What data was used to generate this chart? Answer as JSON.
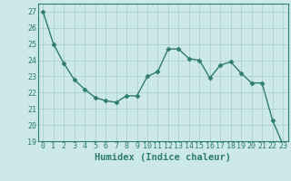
{
  "x": [
    0,
    1,
    2,
    3,
    4,
    5,
    6,
    7,
    8,
    9,
    10,
    11,
    12,
    13,
    14,
    15,
    16,
    17,
    18,
    19,
    20,
    21,
    22,
    23
  ],
  "y": [
    27.0,
    25.0,
    23.8,
    22.8,
    22.2,
    21.7,
    21.5,
    21.4,
    21.8,
    21.8,
    23.0,
    23.3,
    24.7,
    24.7,
    24.1,
    24.0,
    22.9,
    23.7,
    23.9,
    23.2,
    22.6,
    22.6,
    20.3,
    18.8
  ],
  "line_color": "#2e7d6e",
  "marker": "D",
  "marker_size": 2.5,
  "bg_color": "#cce8e8",
  "grid_color": "#aacccc",
  "xlabel": "Humidex (Indice chaleur)",
  "ylim": [
    19,
    27.5
  ],
  "xlim": [
    -0.5,
    23.5
  ],
  "yticks": [
    19,
    20,
    21,
    22,
    23,
    24,
    25,
    26,
    27
  ],
  "xticks": [
    0,
    1,
    2,
    3,
    4,
    5,
    6,
    7,
    8,
    9,
    10,
    11,
    12,
    13,
    14,
    15,
    16,
    17,
    18,
    19,
    20,
    21,
    22,
    23
  ],
  "tick_fontsize": 6,
  "xlabel_fontsize": 7.5
}
